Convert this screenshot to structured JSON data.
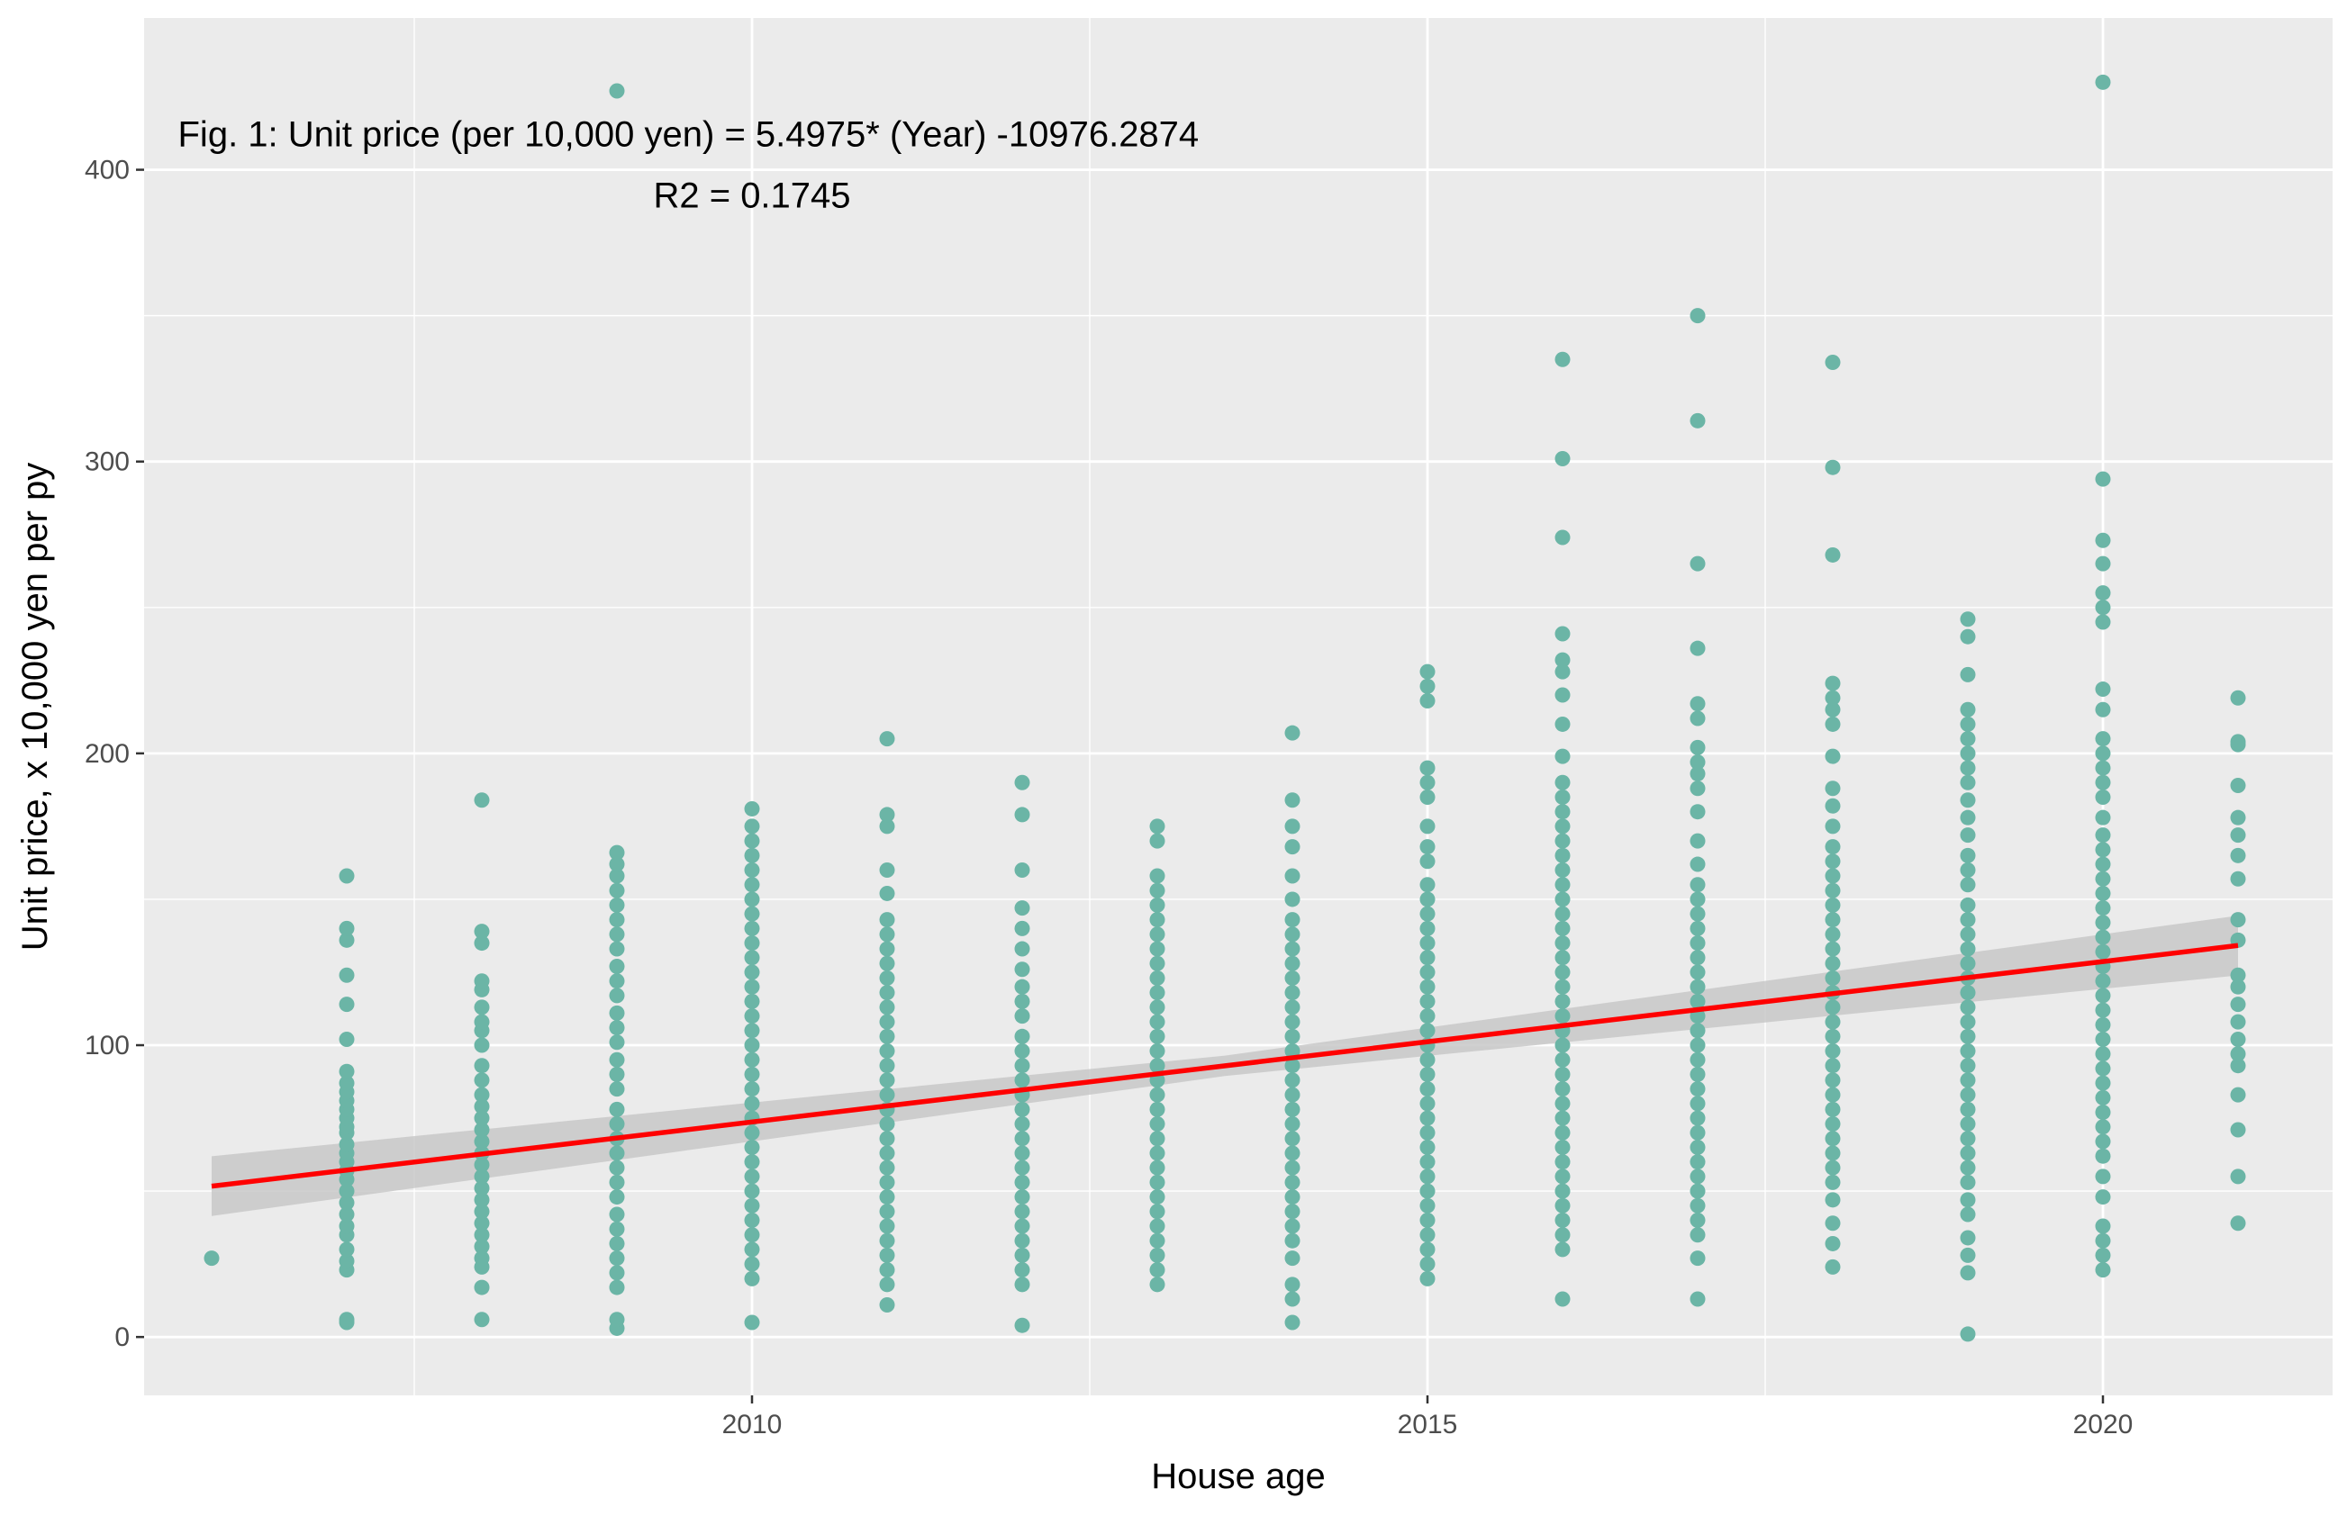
{
  "chart_data": {
    "type": "scatter",
    "xlabel": "House age",
    "ylabel": "Unit price, x 10,000 yen per py",
    "xlim": [
      2005.5,
      2021.7
    ],
    "ylim": [
      -20,
      452
    ],
    "x_ticks": [
      2010,
      2015,
      2020
    ],
    "x_tick_labels": [
      "2010",
      "2015",
      "2020"
    ],
    "x_minor_ticks": [
      2007.5,
      2012.5,
      2017.5
    ],
    "y_ticks": [
      0,
      100,
      200,
      300,
      400
    ],
    "y_tick_labels": [
      "0",
      "100",
      "200",
      "300",
      "400"
    ],
    "y_minor_ticks": [
      50,
      150,
      250,
      350
    ],
    "grid": true,
    "legend": "none",
    "annotations": [
      {
        "text": "Fig. 1: Unit price (per 10,000 yen) = 5.4975* (Year) -10976.2874",
        "x": 2005.75,
        "y": 408,
        "anchor": "start"
      },
      {
        "text": "R2 = 0.1745",
        "x": 2010,
        "y": 387,
        "anchor": "middle"
      }
    ],
    "colors": {
      "panel": "#ebebeb",
      "grid": "#ffffff",
      "points": "#6bb5a6",
      "line": "#ff0000",
      "band": "#c8c8c8"
    },
    "fit": {
      "slope": 5.4975,
      "intercept": -10976.2874,
      "x_start": 2006,
      "x_end": 2021
    },
    "points": [
      {
        "x": 2006,
        "y": [
          27
        ]
      },
      {
        "x": 2007,
        "y": [
          5,
          6,
          23,
          26,
          30,
          35,
          38,
          42,
          46,
          50,
          54,
          57,
          60,
          63,
          66,
          70,
          72,
          75,
          78,
          81,
          84,
          87,
          91,
          102,
          114,
          124,
          136,
          140,
          158
        ]
      },
      {
        "x": 2008,
        "y": [
          6,
          17,
          24,
          27,
          31,
          35,
          39,
          43,
          47,
          51,
          55,
          59,
          63,
          67,
          71,
          75,
          79,
          83,
          88,
          93,
          100,
          105,
          108,
          113,
          119,
          122,
          135,
          139,
          184
        ]
      },
      {
        "x": 2009,
        "y": [
          3,
          6,
          17,
          22,
          27,
          32,
          37,
          42,
          48,
          53,
          58,
          63,
          68,
          73,
          78,
          85,
          90,
          95,
          101,
          106,
          111,
          117,
          122,
          127,
          133,
          138,
          143,
          148,
          153,
          158,
          162,
          166,
          427
        ]
      },
      {
        "x": 2010,
        "y": [
          5,
          20,
          25,
          30,
          35,
          40,
          45,
          50,
          55,
          60,
          65,
          70,
          75,
          80,
          85,
          90,
          95,
          100,
          105,
          110,
          115,
          120,
          125,
          130,
          135,
          140,
          145,
          150,
          155,
          160,
          165,
          170,
          175,
          181
        ]
      },
      {
        "x": 2011,
        "y": [
          11,
          18,
          23,
          28,
          33,
          38,
          43,
          48,
          53,
          58,
          63,
          68,
          73,
          78,
          83,
          88,
          93,
          98,
          103,
          108,
          113,
          118,
          123,
          128,
          133,
          138,
          143,
          152,
          160,
          175,
          179,
          205
        ]
      },
      {
        "x": 2012,
        "y": [
          4,
          18,
          23,
          28,
          33,
          38,
          43,
          48,
          53,
          58,
          63,
          68,
          73,
          78,
          83,
          88,
          93,
          98,
          103,
          110,
          115,
          120,
          126,
          133,
          140,
          147,
          160,
          179,
          190
        ]
      },
      {
        "x": 2013,
        "y": [
          18,
          23,
          28,
          33,
          38,
          43,
          48,
          53,
          58,
          63,
          68,
          73,
          78,
          83,
          88,
          93,
          98,
          103,
          108,
          113,
          118,
          123,
          128,
          133,
          138,
          143,
          148,
          153,
          158,
          170,
          175
        ]
      },
      {
        "x": 2014,
        "y": [
          5,
          13,
          18,
          27,
          33,
          38,
          43,
          48,
          53,
          58,
          63,
          68,
          73,
          78,
          83,
          88,
          93,
          98,
          103,
          108,
          113,
          118,
          123,
          128,
          133,
          138,
          143,
          150,
          158,
          168,
          175,
          184,
          207
        ]
      },
      {
        "x": 2015,
        "y": [
          20,
          25,
          30,
          35,
          40,
          45,
          50,
          55,
          60,
          65,
          70,
          75,
          80,
          85,
          90,
          95,
          100,
          105,
          110,
          115,
          120,
          125,
          130,
          135,
          140,
          145,
          150,
          155,
          163,
          168,
          175,
          185,
          190,
          195,
          218,
          223,
          228
        ]
      },
      {
        "x": 2016,
        "y": [
          13,
          30,
          35,
          40,
          45,
          50,
          55,
          60,
          65,
          70,
          75,
          80,
          85,
          90,
          95,
          100,
          105,
          110,
          115,
          120,
          125,
          130,
          135,
          140,
          145,
          150,
          155,
          160,
          165,
          170,
          175,
          180,
          185,
          190,
          199,
          210,
          220,
          228,
          232,
          241,
          274,
          301,
          335
        ]
      },
      {
        "x": 2017,
        "y": [
          13,
          27,
          35,
          40,
          45,
          50,
          55,
          60,
          65,
          70,
          75,
          80,
          85,
          90,
          95,
          100,
          105,
          110,
          115,
          120,
          125,
          130,
          135,
          140,
          145,
          150,
          155,
          162,
          170,
          180,
          188,
          193,
          197,
          202,
          212,
          217,
          236,
          265,
          314,
          350
        ]
      },
      {
        "x": 2018,
        "y": [
          24,
          32,
          39,
          47,
          53,
          58,
          63,
          68,
          73,
          78,
          83,
          88,
          93,
          98,
          103,
          108,
          113,
          118,
          123,
          128,
          133,
          138,
          143,
          148,
          153,
          158,
          163,
          168,
          175,
          182,
          188,
          199,
          210,
          215,
          219,
          224,
          268,
          298,
          334
        ]
      },
      {
        "x": 2019,
        "y": [
          1,
          22,
          28,
          34,
          42,
          47,
          53,
          58,
          63,
          68,
          73,
          78,
          83,
          88,
          93,
          98,
          103,
          108,
          113,
          118,
          123,
          128,
          133,
          138,
          143,
          148,
          155,
          160,
          165,
          172,
          178,
          184,
          190,
          195,
          200,
          205,
          210,
          215,
          227,
          240,
          246
        ]
      },
      {
        "x": 2020,
        "y": [
          23,
          28,
          33,
          38,
          48,
          55,
          62,
          67,
          72,
          77,
          82,
          87,
          92,
          97,
          102,
          107,
          112,
          117,
          122,
          127,
          132,
          137,
          142,
          147,
          152,
          157,
          162,
          167,
          172,
          178,
          185,
          190,
          195,
          200,
          205,
          215,
          222,
          245,
          250,
          255,
          265,
          273,
          294,
          430
        ]
      },
      {
        "x": 2021,
        "y": [
          39,
          55,
          71,
          83,
          93,
          97,
          102,
          108,
          114,
          120,
          124,
          136,
          143,
          157,
          165,
          172,
          178,
          189,
          203,
          204,
          219
        ]
      }
    ]
  }
}
